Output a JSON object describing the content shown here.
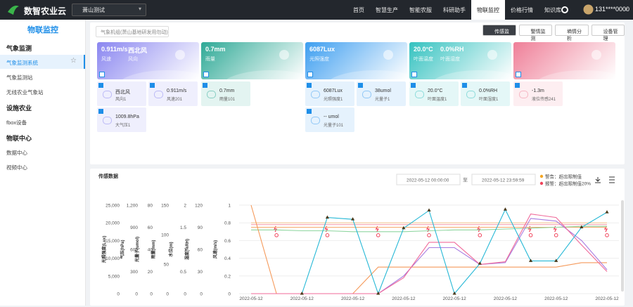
{
  "nav": {
    "brand": "数智农业云",
    "location": "萧山测试",
    "menu": [
      "首页",
      "智慧生产",
      "智能农服",
      "科研助手",
      "物联监控",
      "价格行情",
      "知识库"
    ],
    "active": 4,
    "user": "131****0000"
  },
  "sidebar": {
    "title": "物联监控",
    "active_item": "气象监测系统",
    "groups": [
      {
        "title": "气象监测",
        "items": [
          "气象监测系统",
          "气象监测站",
          "无线农业气象站"
        ]
      },
      {
        "title": "设施农业",
        "items": [
          "fbox设备"
        ]
      },
      {
        "title": "物联中心",
        "items": [
          "数据中心",
          "视频中心"
        ]
      }
    ]
  },
  "toolbar": {
    "station": "气象机组(萧山基地研发用勿动)",
    "tabs": [
      "传感监测",
      "警情监测",
      "墒情分析",
      "设备管理"
    ],
    "active": 0
  },
  "cards": [
    {
      "values": [
        "0.911m/s",
        "西北风"
      ],
      "labels": [
        "风速",
        "风向"
      ],
      "color": "#8a86f0",
      "sensors": [
        {
          "value": "西北风",
          "label": "风向1"
        },
        {
          "value": "0.911m/s",
          "label": "风速201"
        },
        {
          "value": "1009.8hPa",
          "label": "大气压1"
        }
      ]
    },
    {
      "values": [
        "0.7mm"
      ],
      "labels": [
        "雨量"
      ],
      "color": "#2ea996",
      "sensors": [
        {
          "value": "0.7mm",
          "label": "雨量101"
        }
      ]
    },
    {
      "values": [
        "6087Lux"
      ],
      "labels": [
        "光照强度"
      ],
      "color": "#3d9ef0",
      "sensors": [
        {
          "value": "6087Lux",
          "label": "光照强度1"
        },
        {
          "value": "38umol",
          "label": "光量子1"
        },
        {
          "value": "-- umol",
          "label": "光量子101"
        }
      ]
    },
    {
      "values": [
        "20.0°C",
        "0.0%RH"
      ],
      "labels": [
        "叶面温度",
        "叶面湿度"
      ],
      "color": "#35c2c0",
      "sensors": [
        {
          "value": "20.0°C",
          "label": "叶面温度1"
        },
        {
          "value": "0.0%RH",
          "label": "叶面湿度1"
        }
      ]
    },
    {
      "values": [],
      "labels": [],
      "color": "#ef7f98",
      "sensors": [
        {
          "value": "-1.3m",
          "label": "液位传感241"
        }
      ]
    }
  ],
  "chart": {
    "type": "line",
    "title": "传感数据",
    "start": "2022-05-12 00:00:00",
    "to": "至",
    "end": "2022-05-12 23:59:59",
    "legend": [
      {
        "text": "警告：超出限制值",
        "color": "#f5a623"
      },
      {
        "text": "报警：超出限制值20%",
        "color": "#f0445b"
      }
    ],
    "x": [
      "2022-05-12",
      null,
      "2022-05-12",
      null,
      "2022-05-12",
      null,
      "2022-05-12",
      null,
      "2022-05-12",
      null,
      "2022-05-12",
      null,
      "2022-05-12",
      null,
      "2022-05-12"
    ],
    "axes": [
      {
        "label": "光照强度(Lux)",
        "lim": [
          0,
          25000
        ],
        "ticks": [
          0,
          {
            "value": 5000,
            "label": "5,000"
          },
          {
            "value": 10000,
            "label": "10,000"
          },
          {
            "value": 15000,
            "label": "15,000"
          },
          {
            "value": 20000,
            "label": "20,000"
          },
          {
            "value": 25000,
            "label": "25,000"
          }
        ]
      },
      {
        "label": "气压(hPa)",
        "lim": [
          0,
          1200
        ],
        "ticks": [
          0,
          300,
          600,
          900,
          {
            "value": 1200,
            "label": "1,200"
          }
        ]
      },
      {
        "label": "光量子(umol)",
        "lim": [
          0,
          80
        ],
        "ticks": [
          0,
          20,
          40,
          60,
          80
        ]
      },
      {
        "label": "雨量(mm)",
        "lim": [
          0,
          150
        ],
        "ticks": [
          0,
          50,
          100,
          150
        ]
      },
      {
        "label": "水位(m)",
        "lim": [
          0,
          2
        ],
        "ticks": [
          0,
          0.5,
          1,
          1.5,
          2
        ]
      },
      {
        "label": "湿度(%RH)",
        "lim": [
          0,
          120
        ],
        "ticks": [
          0,
          30,
          60,
          90,
          120
        ]
      },
      {
        "label": "风速(m/s)",
        "lim": [
          0,
          1
        ],
        "ticks": [
          0,
          0.2,
          0.4,
          0.6,
          0.8,
          1
        ]
      }
    ],
    "series": [
      {
        "color": "#f6c89a",
        "values": [
          0.8,
          0.8,
          0.8,
          0.8,
          0.8,
          0.8,
          0.8,
          0.8,
          0.8,
          0.8,
          0.8,
          0.8,
          0.8,
          0.8,
          0.8
        ]
      },
      {
        "color": "#f7a3b0",
        "values": [
          0.78,
          0.78,
          0.78,
          0.78,
          0.78,
          0.78,
          0.78,
          0.78,
          0.78,
          0.78,
          0.78,
          0.78,
          0.78,
          0.78,
          0.78
        ]
      },
      {
        "color": "#f5a86a",
        "values": [
          0.75,
          0.75,
          0.75,
          0.75,
          0.75,
          0.75,
          0.75,
          0.75,
          0.75,
          0.75,
          0.75,
          0.75,
          0.75,
          0.75,
          0.75
        ]
      },
      {
        "color": "#8fd6a0",
        "values": [
          0.72,
          0.72,
          0.71,
          0.71,
          0.7,
          0.7,
          0.7,
          0.71,
          0.72,
          0.72,
          0.73,
          0.74,
          0.75,
          0.76,
          0.76
        ]
      },
      {
        "color": "#f59a5b",
        "values": [
          1,
          0,
          0,
          0,
          0,
          0.3,
          0.3,
          0.3,
          0.3,
          0.3,
          0.3,
          0.3,
          0.3,
          0.35,
          0.35
        ]
      },
      {
        "color": "#a77be0",
        "values": [
          0,
          0,
          0,
          0,
          0,
          0,
          0.2,
          0.52,
          0.52,
          0.33,
          0.35,
          0.85,
          0.82,
          0.6,
          0.27
        ]
      },
      {
        "color": "#f06a9a",
        "values": [
          0,
          0,
          0,
          0,
          0,
          0,
          0.18,
          0.58,
          0.58,
          0.33,
          0.36,
          0.9,
          0.86,
          0.55,
          0.25
        ]
      },
      {
        "color": "#26b8d6",
        "markers": true,
        "values": [
          null,
          null,
          0,
          0.86,
          0.84,
          0,
          0.74,
          0.94,
          0,
          0.34,
          0.95,
          0.37,
          0.37,
          0.75,
          0.92
        ]
      }
    ]
  }
}
